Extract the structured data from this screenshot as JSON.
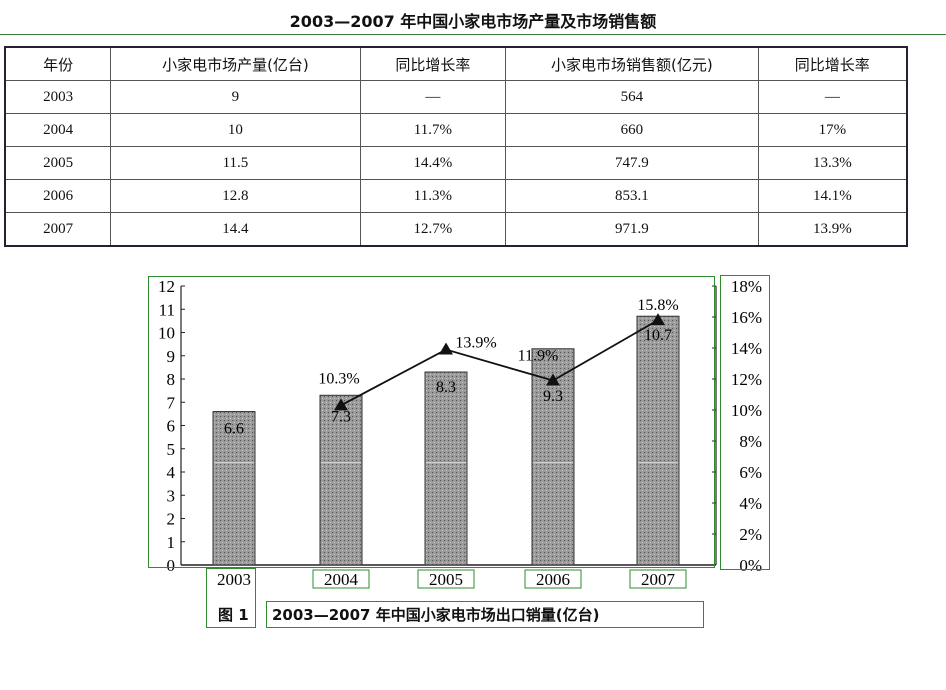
{
  "table": {
    "title": "2003—2007 年中国小家电市场产量及市场销售额",
    "headers": [
      "年份",
      "小家电市场产量(亿台)",
      "同比增长率",
      "小家电市场销售额(亿元)",
      "同比增长率"
    ],
    "rows": [
      [
        "2003",
        "9",
        "—",
        "564",
        "—"
      ],
      [
        "2004",
        "10",
        "11.7%",
        "660",
        "17%"
      ],
      [
        "2005",
        "11.5",
        "14.4%",
        "747.9",
        "13.3%"
      ],
      [
        "2006",
        "12.8",
        "11.3%",
        "853.1",
        "14.1%"
      ],
      [
        "2007",
        "14.4",
        "12.7%",
        "971.9",
        "13.9%"
      ]
    ]
  },
  "chart_data": {
    "type": "bar+line",
    "figure_label": "图 1",
    "title": "2003—2007 年中国小家电市场出口销量(亿台)",
    "categories": [
      "2003",
      "2004",
      "2005",
      "2006",
      "2007"
    ],
    "bars": {
      "values": [
        6.6,
        7.3,
        8.3,
        9.3,
        10.7
      ],
      "labels": [
        "6.6",
        "7.3",
        "8.3",
        "9.3",
        "10.7"
      ],
      "ylim": [
        0,
        12
      ],
      "yticks": [
        "0",
        "1",
        "2",
        "3",
        "4",
        "5",
        "6",
        "7",
        "8",
        "9",
        "10",
        "11",
        "12"
      ]
    },
    "line": {
      "values": [
        null,
        10.3,
        13.9,
        11.9,
        15.8
      ],
      "labels": [
        "",
        "10.3%",
        "13.9%",
        "11.9%",
        "15.8%"
      ],
      "ylim": [
        0,
        18
      ],
      "yticks": [
        "0%",
        "2%",
        "4%",
        "6%",
        "8%",
        "10%",
        "12%",
        "14%",
        "16%",
        "18%"
      ]
    },
    "colors": {
      "bar": "#8a8a8a",
      "line": "#111111"
    }
  }
}
